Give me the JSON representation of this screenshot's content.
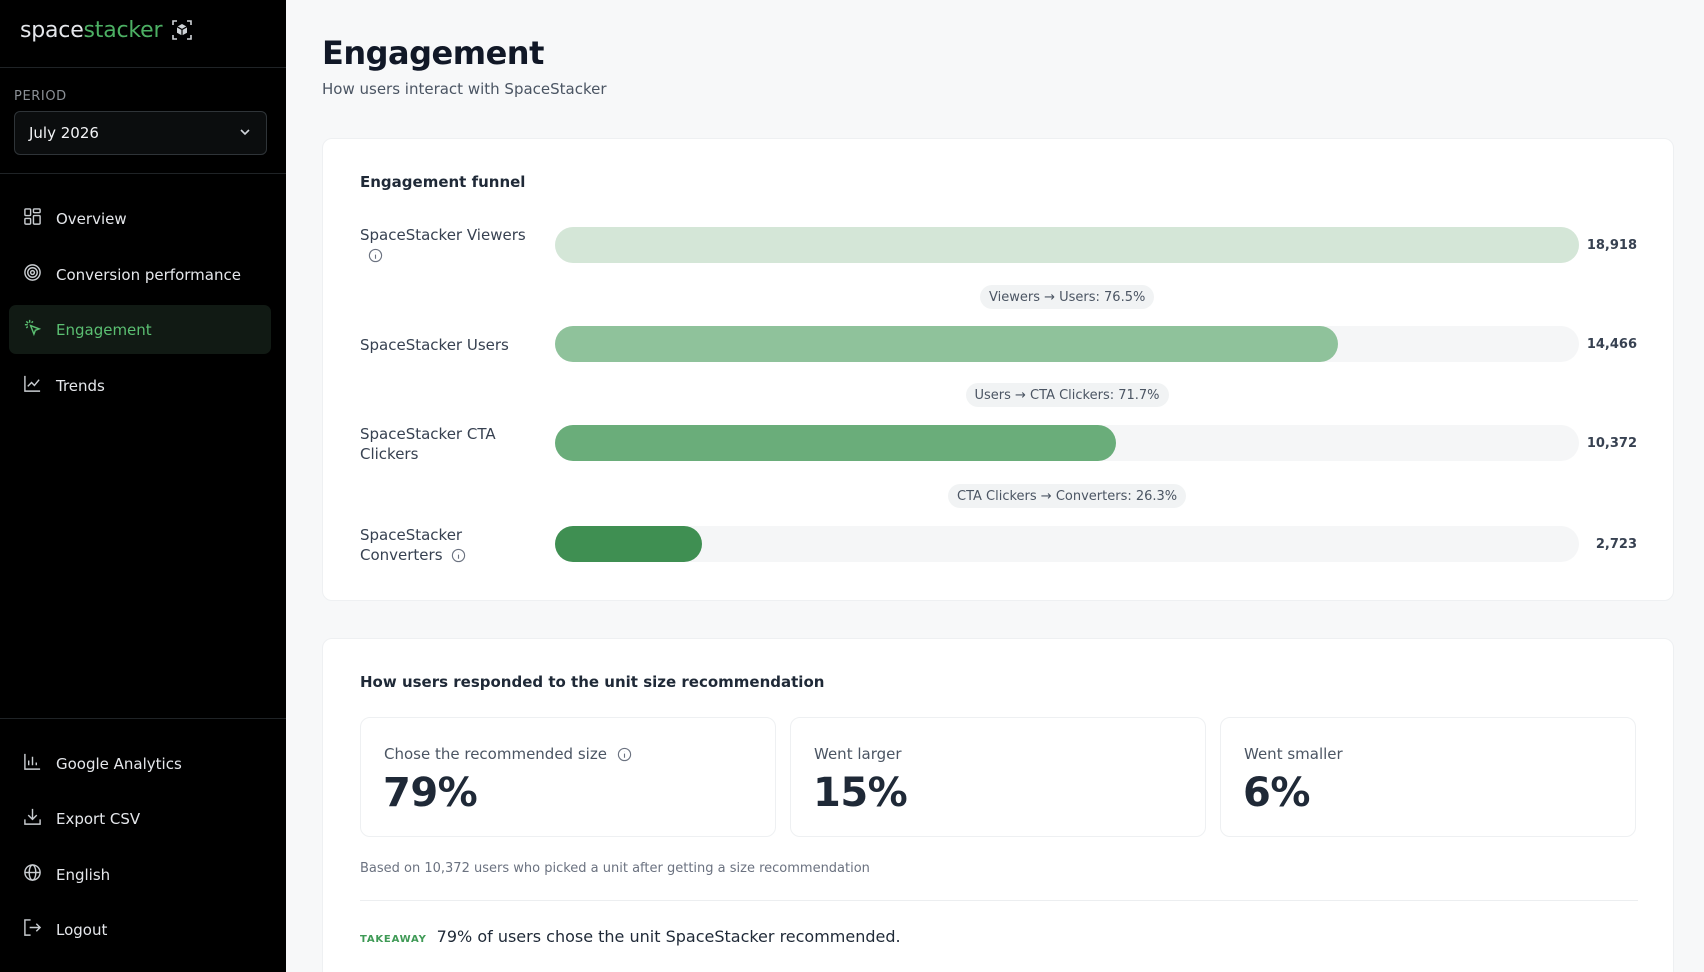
{
  "brand": {
    "name_part1": "space",
    "name_part2": "stacker",
    "accent": "#4caf63"
  },
  "sidebar": {
    "period_label": "PERIOD",
    "period_value": "July 2026",
    "nav": [
      {
        "label": "Overview",
        "icon": "grid-icon",
        "active": false
      },
      {
        "label": "Conversion performance",
        "icon": "target-icon",
        "active": false
      },
      {
        "label": "Engagement",
        "icon": "sparkle-click-icon",
        "active": true
      },
      {
        "label": "Trends",
        "icon": "line-chart-icon",
        "active": false
      }
    ],
    "bottom": [
      {
        "label": "Google Analytics",
        "icon": "bar-chart-icon"
      },
      {
        "label": "Export CSV",
        "icon": "download-icon"
      },
      {
        "label": "English",
        "icon": "globe-icon"
      },
      {
        "label": "Logout",
        "icon": "logout-icon"
      }
    ]
  },
  "page": {
    "title": "Engagement",
    "subtitle": "How users interact with SpaceStacker"
  },
  "funnel": {
    "title": "Engagement funnel",
    "stages": [
      {
        "label": "SpaceStacker Viewers",
        "value": 18918,
        "value_text": "18,918",
        "info": true,
        "color": "#d4e6d7"
      },
      {
        "label": "SpaceStacker Users",
        "value": 14466,
        "value_text": "14,466",
        "info": false,
        "color": "#8fc29b"
      },
      {
        "label": "SpaceStacker CTA Clickers",
        "value": 10372,
        "value_text": "10,372",
        "info": false,
        "color": "#6aad7a"
      },
      {
        "label": "SpaceStacker Converters",
        "value": 2723,
        "value_text": "2,723",
        "info": true,
        "color": "#3f8f52"
      }
    ],
    "conversions": [
      "Viewers → Users: 76.5%",
      "Users → CTA Clickers: 71.7%",
      "CTA Clickers → Converters: 26.3%"
    ]
  },
  "recommendation": {
    "title": "How users responded to the unit size recommendation",
    "stats": [
      {
        "label": "Chose the recommended size",
        "value": "79%",
        "info": true
      },
      {
        "label": "Went larger",
        "value": "15%",
        "info": false
      },
      {
        "label": "Went smaller",
        "value": "6%",
        "info": false
      }
    ],
    "note": "Based on 10,372 users who picked a unit after getting a size recommendation",
    "takeaway_tag": "TAKEAWAY",
    "takeaway_text": "79% of users chose the unit SpaceStacker recommended."
  }
}
